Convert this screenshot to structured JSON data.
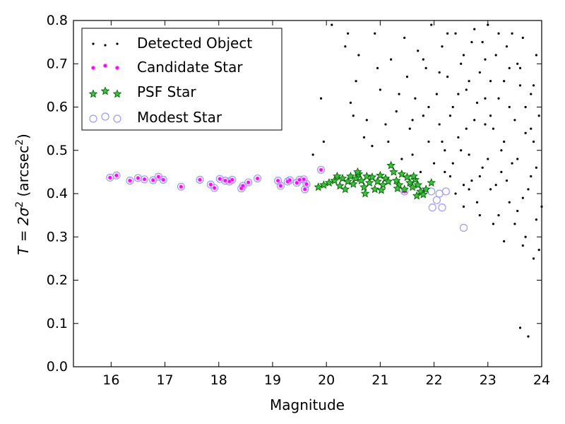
{
  "chart_data": {
    "type": "scatter",
    "title": "",
    "xlabel": "Magnitude",
    "ylabel": {
      "base": "T = 2σ",
      "sup1": "2",
      "unit": " (arcsec",
      "sup2": "2",
      "close": ")"
    },
    "xlim": [
      15.3,
      24
    ],
    "ylim": [
      0,
      0.8
    ],
    "xticks": [
      "16",
      "17",
      "18",
      "19",
      "20",
      "21",
      "22",
      "23",
      "24"
    ],
    "yticks": [
      "0.0",
      "0.1",
      "0.2",
      "0.3",
      "0.4",
      "0.5",
      "0.6",
      "0.7",
      "0.8"
    ],
    "grid": false,
    "legend_position": "top-left",
    "colors": {
      "detected": "#000000",
      "candidate_face": "#ff00ff",
      "candidate_edge": "#ff66ff",
      "psf_face": "#3fbf3f",
      "psf_edge": "#006400",
      "modest_edge": "#9999ff"
    },
    "series": [
      {
        "name": "Detected Object",
        "marker": "dot",
        "points": [
          [
            19.75,
            0.49
          ],
          [
            19.9,
            0.62
          ],
          [
            19.95,
            0.52
          ],
          [
            20.1,
            0.79
          ],
          [
            20.35,
            0.74
          ],
          [
            20.45,
            0.61
          ],
          [
            20.5,
            0.58
          ],
          [
            20.55,
            0.66
          ],
          [
            20.6,
            0.72
          ],
          [
            20.75,
            0.57
          ],
          [
            20.85,
            0.51
          ],
          [
            20.9,
            0.77
          ],
          [
            21.0,
            0.64
          ],
          [
            21.15,
            0.52
          ],
          [
            21.2,
            0.71
          ],
          [
            21.3,
            0.59
          ],
          [
            21.4,
            0.48
          ],
          [
            21.45,
            0.76
          ],
          [
            21.5,
            0.67
          ],
          [
            21.55,
            0.55
          ],
          [
            21.6,
            0.49
          ],
          [
            21.65,
            0.62
          ],
          [
            21.7,
            0.73
          ],
          [
            21.75,
            0.45
          ],
          [
            21.8,
            0.58
          ],
          [
            21.85,
            0.69
          ],
          [
            21.9,
            0.52
          ],
          [
            21.95,
            0.79
          ],
          [
            22.0,
            0.47
          ],
          [
            22.05,
            0.63
          ],
          [
            22.1,
            0.56
          ],
          [
            22.15,
            0.74
          ],
          [
            22.2,
            0.5
          ],
          [
            22.25,
            0.67
          ],
          [
            22.3,
            0.44
          ],
          [
            22.35,
            0.6
          ],
          [
            22.4,
            0.77
          ],
          [
            22.45,
            0.53
          ],
          [
            22.5,
            0.7
          ],
          [
            22.55,
            0.42
          ],
          [
            22.6,
            0.64
          ],
          [
            22.65,
            0.49
          ],
          [
            22.7,
            0.75
          ],
          [
            22.75,
            0.57
          ],
          [
            22.8,
            0.38
          ],
          [
            22.85,
            0.68
          ],
          [
            22.9,
            0.46
          ],
          [
            22.95,
            0.62
          ],
          [
            23.0,
            0.79
          ],
          [
            23.05,
            0.41
          ],
          [
            23.1,
            0.55
          ],
          [
            23.15,
            0.72
          ],
          [
            23.2,
            0.35
          ],
          [
            23.25,
            0.5
          ],
          [
            23.3,
            0.66
          ],
          [
            23.35,
            0.43
          ],
          [
            23.4,
            0.6
          ],
          [
            23.45,
            0.77
          ],
          [
            23.5,
            0.33
          ],
          [
            23.55,
            0.48
          ],
          [
            23.6,
            0.69
          ],
          [
            23.65,
            0.28
          ],
          [
            23.7,
            0.54
          ],
          [
            23.75,
            0.41
          ],
          [
            23.8,
            0.63
          ],
          [
            23.85,
            0.25
          ],
          [
            23.9,
            0.46
          ],
          [
            23.95,
            0.58
          ],
          [
            24.0,
            0.37
          ],
          [
            22.3,
            0.58
          ],
          [
            22.55,
            0.72
          ],
          [
            22.8,
            0.61
          ],
          [
            23.05,
            0.66
          ],
          [
            23.3,
            0.52
          ],
          [
            23.55,
            0.7
          ],
          [
            23.8,
            0.44
          ],
          [
            22.4,
            0.4
          ],
          [
            22.7,
            0.43
          ],
          [
            23.0,
            0.48
          ],
          [
            23.4,
            0.38
          ],
          [
            23.7,
            0.3
          ],
          [
            23.9,
            0.34
          ],
          [
            23.6,
            0.09
          ],
          [
            23.75,
            0.07
          ],
          [
            22.6,
            0.55
          ],
          [
            22.9,
            0.75
          ],
          [
            23.2,
            0.62
          ],
          [
            23.5,
            0.57
          ],
          [
            23.85,
            0.52
          ],
          [
            22.2,
            0.45
          ],
          [
            22.5,
            0.5
          ],
          [
            22.85,
            0.35
          ],
          [
            23.15,
            0.42
          ],
          [
            23.45,
            0.47
          ],
          [
            23.65,
            0.39
          ],
          [
            23.95,
            0.27
          ],
          [
            21.8,
            0.71
          ],
          [
            22.1,
            0.68
          ],
          [
            22.45,
            0.63
          ],
          [
            22.75,
            0.78
          ],
          [
            23.05,
            0.58
          ],
          [
            23.35,
            0.74
          ],
          [
            23.6,
            0.65
          ],
          [
            23.9,
            0.72
          ],
          [
            21.6,
            0.57
          ],
          [
            21.9,
            0.6
          ],
          [
            22.15,
            0.52
          ],
          [
            22.35,
            0.47
          ],
          [
            22.65,
            0.41
          ],
          [
            22.95,
            0.56
          ],
          [
            23.25,
            0.45
          ],
          [
            23.55,
            0.36
          ],
          [
            23.8,
            0.55
          ],
          [
            23.7,
            0.6
          ],
          [
            23.3,
            0.29
          ],
          [
            23.1,
            0.33
          ],
          [
            22.85,
            0.44
          ],
          [
            22.55,
            0.37
          ],
          [
            23.4,
            0.69
          ],
          [
            23.2,
            0.77
          ],
          [
            22.95,
            0.71
          ],
          [
            22.65,
            0.66
          ],
          [
            22.25,
            0.77
          ],
          [
            23.65,
            0.76
          ],
          [
            23.85,
            0.65
          ],
          [
            21.35,
            0.63
          ],
          [
            21.1,
            0.56
          ],
          [
            20.95,
            0.69
          ],
          [
            20.7,
            0.53
          ],
          [
            20.4,
            0.77
          ]
        ]
      },
      {
        "name": "Candidate Star",
        "marker": "small-dot",
        "points": [
          [
            15.98,
            0.437
          ],
          [
            16.1,
            0.442
          ],
          [
            16.35,
            0.43
          ],
          [
            16.5,
            0.436
          ],
          [
            16.62,
            0.433
          ],
          [
            16.78,
            0.431
          ],
          [
            16.88,
            0.439
          ],
          [
            16.97,
            0.432
          ],
          [
            17.3,
            0.416
          ],
          [
            17.65,
            0.432
          ],
          [
            17.85,
            0.421
          ],
          [
            17.92,
            0.413
          ],
          [
            18.02,
            0.434
          ],
          [
            18.12,
            0.43
          ],
          [
            18.2,
            0.428
          ],
          [
            18.25,
            0.432
          ],
          [
            18.42,
            0.412
          ],
          [
            18.45,
            0.418
          ],
          [
            18.55,
            0.426
          ],
          [
            18.72,
            0.435
          ],
          [
            19.1,
            0.43
          ],
          [
            19.15,
            0.418
          ],
          [
            19.28,
            0.428
          ],
          [
            19.32,
            0.431
          ],
          [
            19.45,
            0.425
          ],
          [
            19.5,
            0.432
          ],
          [
            19.58,
            0.433
          ],
          [
            19.6,
            0.41
          ],
          [
            19.63,
            0.422
          ],
          [
            19.9,
            0.455
          ],
          [
            21.45,
            0.405
          ],
          [
            21.8,
            0.405
          ]
        ]
      },
      {
        "name": "PSF Star",
        "marker": "star",
        "points": [
          [
            19.85,
            0.415
          ],
          [
            19.95,
            0.42
          ],
          [
            20.05,
            0.425
          ],
          [
            20.15,
            0.43
          ],
          [
            20.2,
            0.44
          ],
          [
            20.25,
            0.418
          ],
          [
            20.3,
            0.435
          ],
          [
            20.35,
            0.41
          ],
          [
            20.4,
            0.428
          ],
          [
            20.45,
            0.44
          ],
          [
            20.5,
            0.422
          ],
          [
            20.55,
            0.435
          ],
          [
            20.6,
            0.445
          ],
          [
            20.65,
            0.43
          ],
          [
            20.7,
            0.415
          ],
          [
            20.75,
            0.44
          ],
          [
            20.8,
            0.425
          ],
          [
            20.85,
            0.438
          ],
          [
            20.9,
            0.41
          ],
          [
            20.95,
            0.428
          ],
          [
            21.0,
            0.442
          ],
          [
            21.05,
            0.42
          ],
          [
            21.1,
            0.435
          ],
          [
            21.15,
            0.428
          ],
          [
            21.2,
            0.465
          ],
          [
            21.25,
            0.45
          ],
          [
            21.3,
            0.43
          ],
          [
            21.35,
            0.42
          ],
          [
            21.4,
            0.445
          ],
          [
            21.45,
            0.41
          ],
          [
            21.5,
            0.438
          ],
          [
            21.55,
            0.425
          ],
          [
            21.6,
            0.415
          ],
          [
            21.65,
            0.432
          ],
          [
            21.7,
            0.42
          ],
          [
            21.75,
            0.405
          ],
          [
            21.8,
            0.398
          ],
          [
            21.85,
            0.41
          ],
          [
            21.95,
            0.425
          ],
          [
            20.58,
            0.45
          ],
          [
            20.72,
            0.4
          ],
          [
            21.02,
            0.408
          ],
          [
            21.32,
            0.412
          ],
          [
            21.62,
            0.44
          ],
          [
            21.68,
            0.395
          ]
        ]
      },
      {
        "name": "Modest Star",
        "marker": "circle",
        "points": [
          [
            15.98,
            0.437
          ],
          [
            16.1,
            0.442
          ],
          [
            16.35,
            0.43
          ],
          [
            16.5,
            0.436
          ],
          [
            16.62,
            0.433
          ],
          [
            16.78,
            0.431
          ],
          [
            16.88,
            0.439
          ],
          [
            16.97,
            0.432
          ],
          [
            17.3,
            0.416
          ],
          [
            17.65,
            0.432
          ],
          [
            17.85,
            0.421
          ],
          [
            17.92,
            0.413
          ],
          [
            18.02,
            0.434
          ],
          [
            18.12,
            0.43
          ],
          [
            18.2,
            0.428
          ],
          [
            18.25,
            0.432
          ],
          [
            18.42,
            0.412
          ],
          [
            18.45,
            0.418
          ],
          [
            18.55,
            0.426
          ],
          [
            18.72,
            0.435
          ],
          [
            19.1,
            0.43
          ],
          [
            19.15,
            0.418
          ],
          [
            19.28,
            0.428
          ],
          [
            19.32,
            0.431
          ],
          [
            19.45,
            0.425
          ],
          [
            19.5,
            0.432
          ],
          [
            19.58,
            0.433
          ],
          [
            19.6,
            0.41
          ],
          [
            19.63,
            0.422
          ],
          [
            19.9,
            0.455
          ],
          [
            21.45,
            0.405
          ],
          [
            21.8,
            0.405
          ],
          [
            21.95,
            0.405
          ],
          [
            21.97,
            0.368
          ],
          [
            22.05,
            0.385
          ],
          [
            22.1,
            0.4
          ],
          [
            22.15,
            0.368
          ],
          [
            22.22,
            0.405
          ],
          [
            22.55,
            0.321
          ]
        ]
      }
    ]
  }
}
